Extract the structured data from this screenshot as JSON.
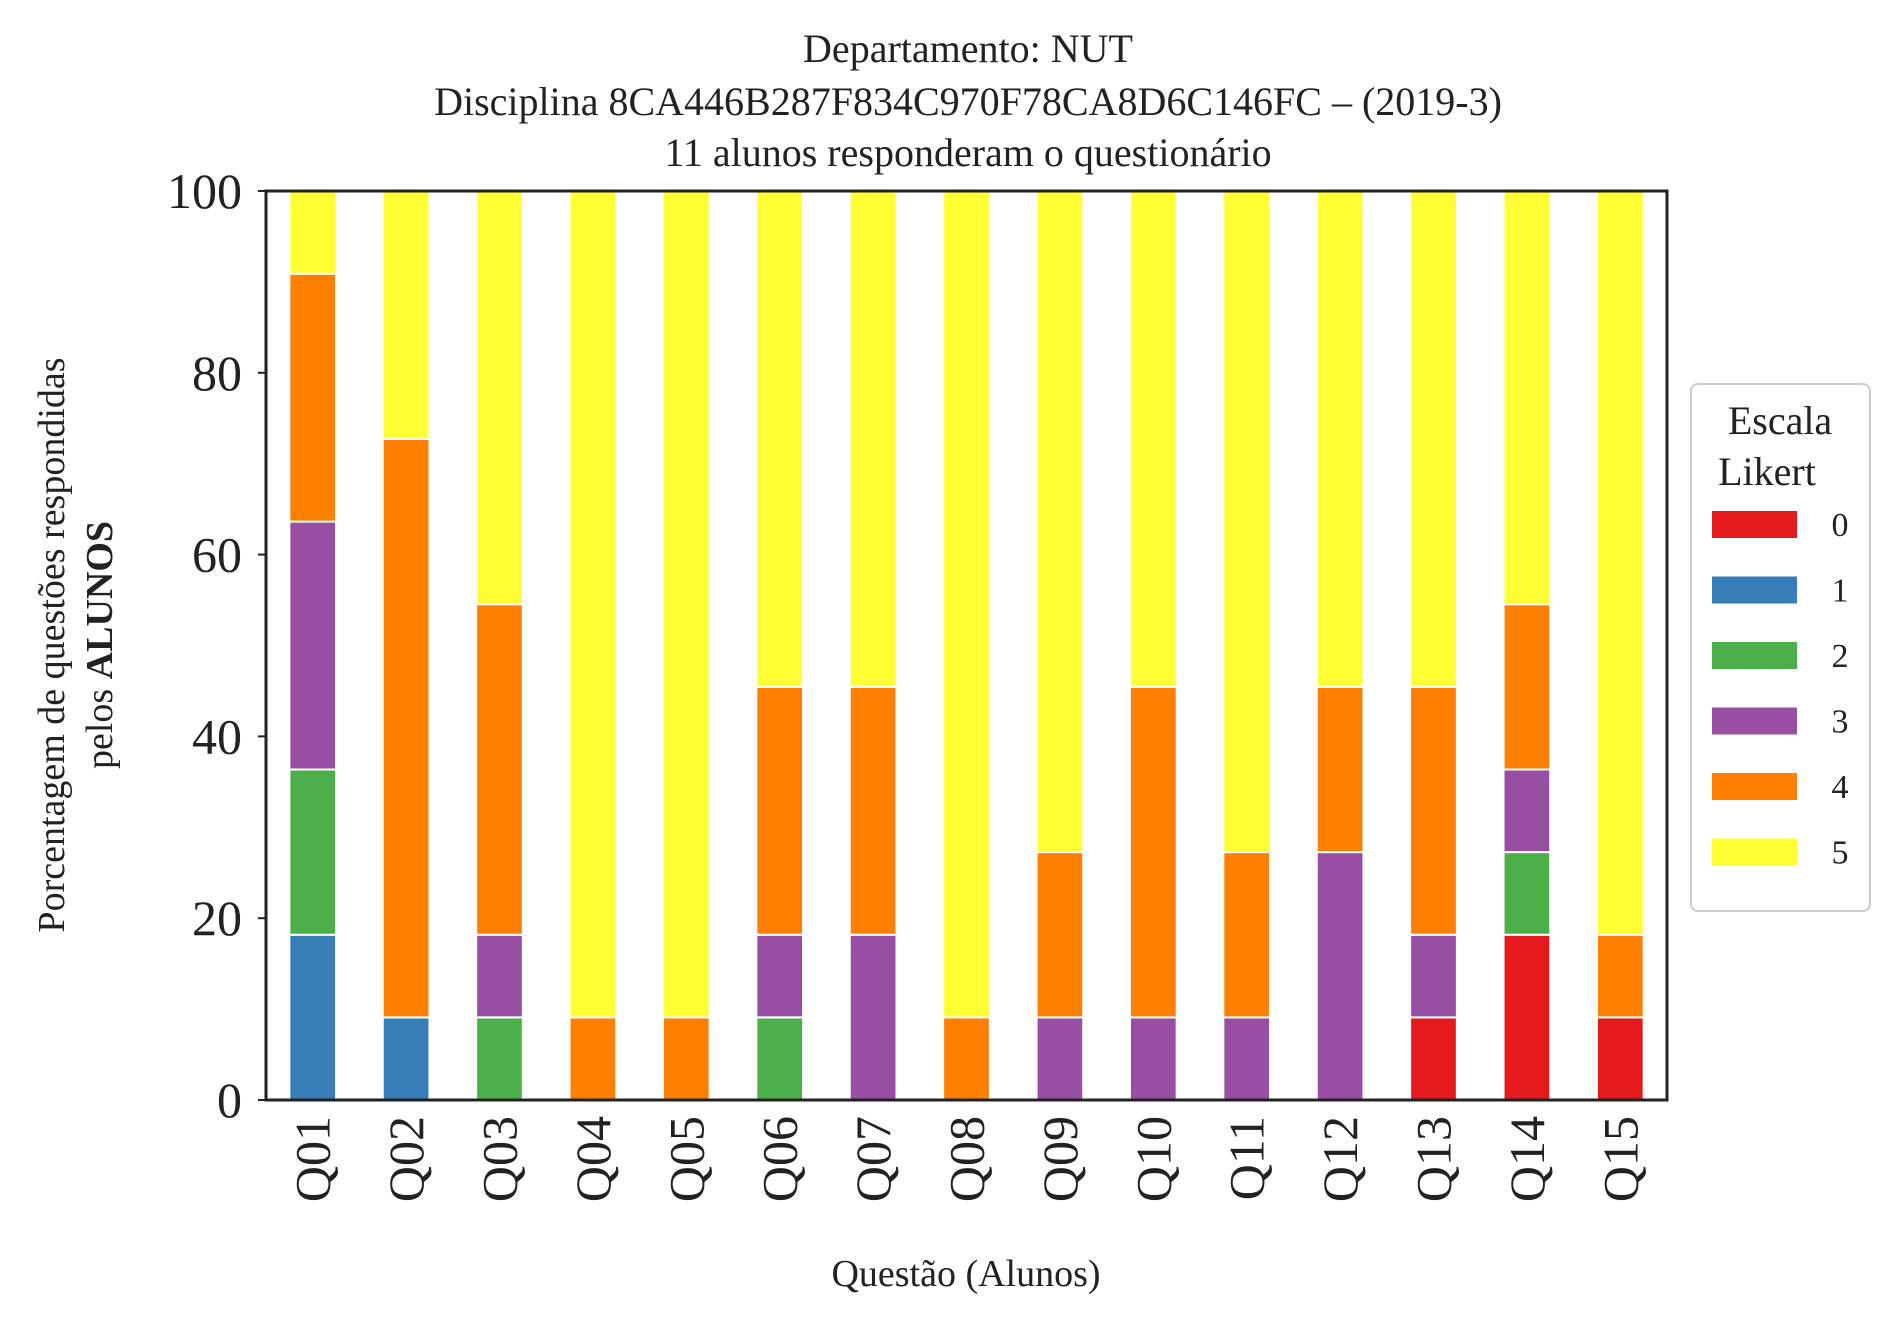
{
  "chart_data": {
    "type": "bar",
    "stacked": true,
    "title_lines": [
      "Departamento: NUT",
      "Disciplina 8CA446B287F834C970F78CA8D6C146FC – (2019-3)",
      "11 alunos responderam o questionário"
    ],
    "xlabel": "Questão (Alunos)",
    "ylabel_line1": "Porcentagem de questões respondidas",
    "ylabel_line2_prefix": "pelos ",
    "ylabel_line2_bold": "ALUNOS",
    "ylim": [
      0,
      100
    ],
    "yticks": [
      "0",
      "20",
      "40",
      "60",
      "80",
      "100"
    ],
    "grid": false,
    "legend": {
      "title_lines": [
        "Escala",
        "Likert"
      ],
      "placement": "right"
    },
    "categories": [
      "Q01",
      "Q02",
      "Q03",
      "Q04",
      "Q05",
      "Q06",
      "Q07",
      "Q08",
      "Q09",
      "Q10",
      "Q11",
      "Q12",
      "Q13",
      "Q14",
      "Q15"
    ],
    "series": [
      {
        "name": "0",
        "color": "#e41a1c",
        "values": [
          0,
          0,
          0,
          0,
          0,
          0,
          0,
          0,
          0,
          0,
          0,
          0,
          9.09,
          18.18,
          9.09
        ]
      },
      {
        "name": "1",
        "color": "#377eb8",
        "values": [
          18.18,
          9.09,
          0,
          0,
          0,
          0,
          0,
          0,
          0,
          0,
          0,
          0,
          0,
          0,
          0
        ]
      },
      {
        "name": "2",
        "color": "#4daf4a",
        "values": [
          18.18,
          0,
          9.09,
          0,
          0,
          9.09,
          0,
          0,
          0,
          0,
          0,
          0,
          0,
          9.09,
          0
        ]
      },
      {
        "name": "3",
        "color": "#984ea3",
        "values": [
          27.27,
          0,
          9.09,
          0,
          0,
          9.09,
          18.18,
          0,
          9.09,
          9.09,
          9.09,
          27.27,
          9.09,
          9.09,
          0
        ]
      },
      {
        "name": "4",
        "color": "#ff7f00",
        "values": [
          27.27,
          63.64,
          36.36,
          9.09,
          9.09,
          27.27,
          27.27,
          9.09,
          18.18,
          36.36,
          18.18,
          18.18,
          27.27,
          18.18,
          9.09
        ]
      },
      {
        "name": "5",
        "color": "#ffff33",
        "values": [
          9.09,
          27.27,
          45.45,
          90.91,
          90.91,
          54.55,
          54.55,
          90.91,
          72.73,
          54.55,
          72.73,
          54.55,
          54.55,
          45.45,
          81.82
        ]
      }
    ]
  }
}
